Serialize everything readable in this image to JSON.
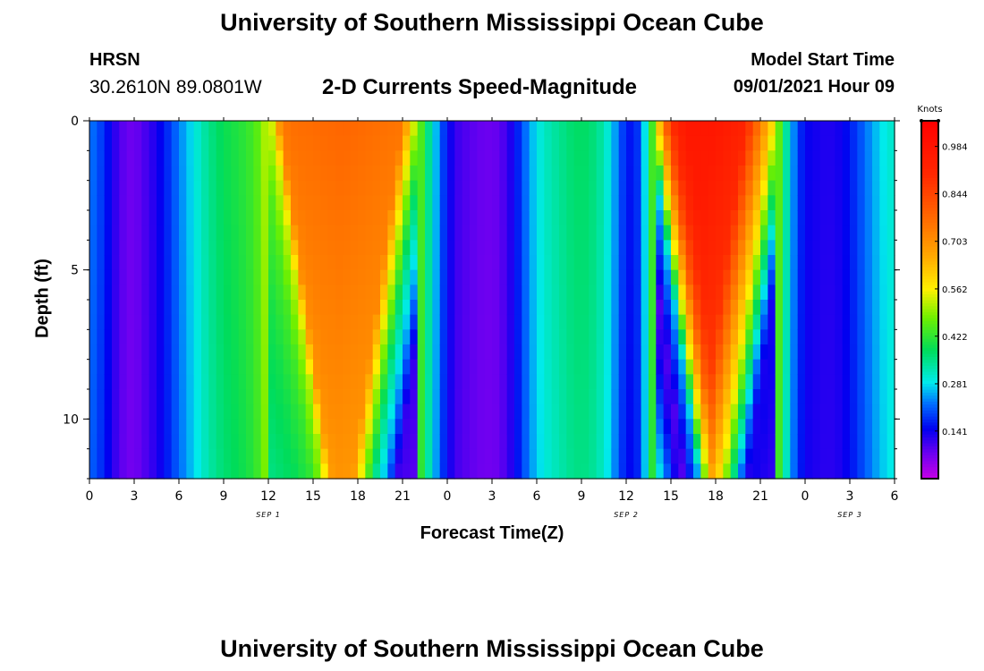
{
  "header": {
    "title": "University of Southern Mississippi Ocean Cube",
    "station": "HRSN",
    "coords": "30.2610N  89.0801W",
    "subtitle": "2-D Currents Speed-Magnitude",
    "model_start_label": "Model Start Time",
    "model_start_value": "09/01/2021 Hour 09"
  },
  "footer": {
    "title": "University of Southern Mississippi Ocean Cube"
  },
  "chart_data": {
    "type": "heatmap",
    "title": "2-D Currents Speed-Magnitude",
    "xlabel": "Forecast Time(Z)",
    "ylabel": "Depth (ft)",
    "x_range_hours": [
      0,
      54
    ],
    "y_range_ft": [
      0,
      12
    ],
    "y_inverted": true,
    "x_tick_labels": [
      "0",
      "3",
      "6",
      "9",
      "12",
      "15",
      "18",
      "21",
      "0",
      "3",
      "6",
      "9",
      "12",
      "15",
      "18",
      "21",
      "0",
      "3",
      "6"
    ],
    "y_tick_labels": [
      "0",
      "5",
      "10"
    ],
    "y_tick_values": [
      0,
      5,
      10
    ],
    "date_labels": [
      {
        "label": "SEP 1",
        "hour": 12
      },
      {
        "label": "SEP 2",
        "hour": 36
      },
      {
        "label": "SEP 3",
        "hour": 51
      }
    ],
    "colorbar": {
      "unit": "Knots",
      "min": 0.0,
      "max": 1.06,
      "tick_labels": [
        "0.984",
        "0.844",
        "0.703",
        "0.562",
        "0.422",
        "0.281",
        "0.141"
      ],
      "tick_values": [
        0.984,
        0.844,
        0.703,
        0.562,
        0.422,
        0.281,
        0.141
      ]
    },
    "depth_rows_ft": [
      0.25,
      0.75,
      1.25,
      1.75,
      2.25,
      2.75,
      3.25,
      3.75,
      4.25,
      4.75,
      5.25,
      5.75,
      6.25,
      6.75,
      7.25,
      7.75,
      8.25,
      8.75,
      9.25,
      9.75,
      10.25,
      10.75,
      11.25,
      11.75
    ],
    "surface_speed_profile": {
      "hours": [
        0,
        0.5,
        1.5,
        2.5,
        3.5,
        4.5,
        5.5,
        6.5,
        7.5,
        8.5,
        9.5,
        10.5,
        11.5,
        12.3,
        12.8,
        13.5,
        17,
        21,
        21.7,
        22.5,
        23.3,
        24,
        25,
        26,
        27,
        28,
        29,
        30,
        31,
        32,
        33,
        34,
        35,
        36,
        36.5,
        37.5,
        38,
        38.8,
        39.3,
        40,
        42,
        44,
        45.8,
        46.5,
        47,
        47.5,
        48,
        49,
        50,
        51,
        52,
        53,
        54
      ],
      "speeds_kt": [
        0.25,
        0.2,
        0.15,
        0.04,
        0.1,
        0.12,
        0.2,
        0.26,
        0.32,
        0.38,
        0.4,
        0.42,
        0.46,
        0.55,
        0.74,
        0.76,
        0.78,
        0.75,
        0.56,
        0.38,
        0.26,
        0.12,
        0.1,
        0.08,
        0.07,
        0.09,
        0.2,
        0.3,
        0.33,
        0.36,
        0.39,
        0.36,
        0.3,
        0.14,
        0.1,
        0.28,
        0.56,
        0.84,
        0.92,
        0.97,
        0.97,
        0.92,
        0.6,
        0.4,
        0.25,
        0.14,
        0.15,
        0.13,
        0.12,
        0.16,
        0.22,
        0.28,
        0.32
      ]
    }
  }
}
